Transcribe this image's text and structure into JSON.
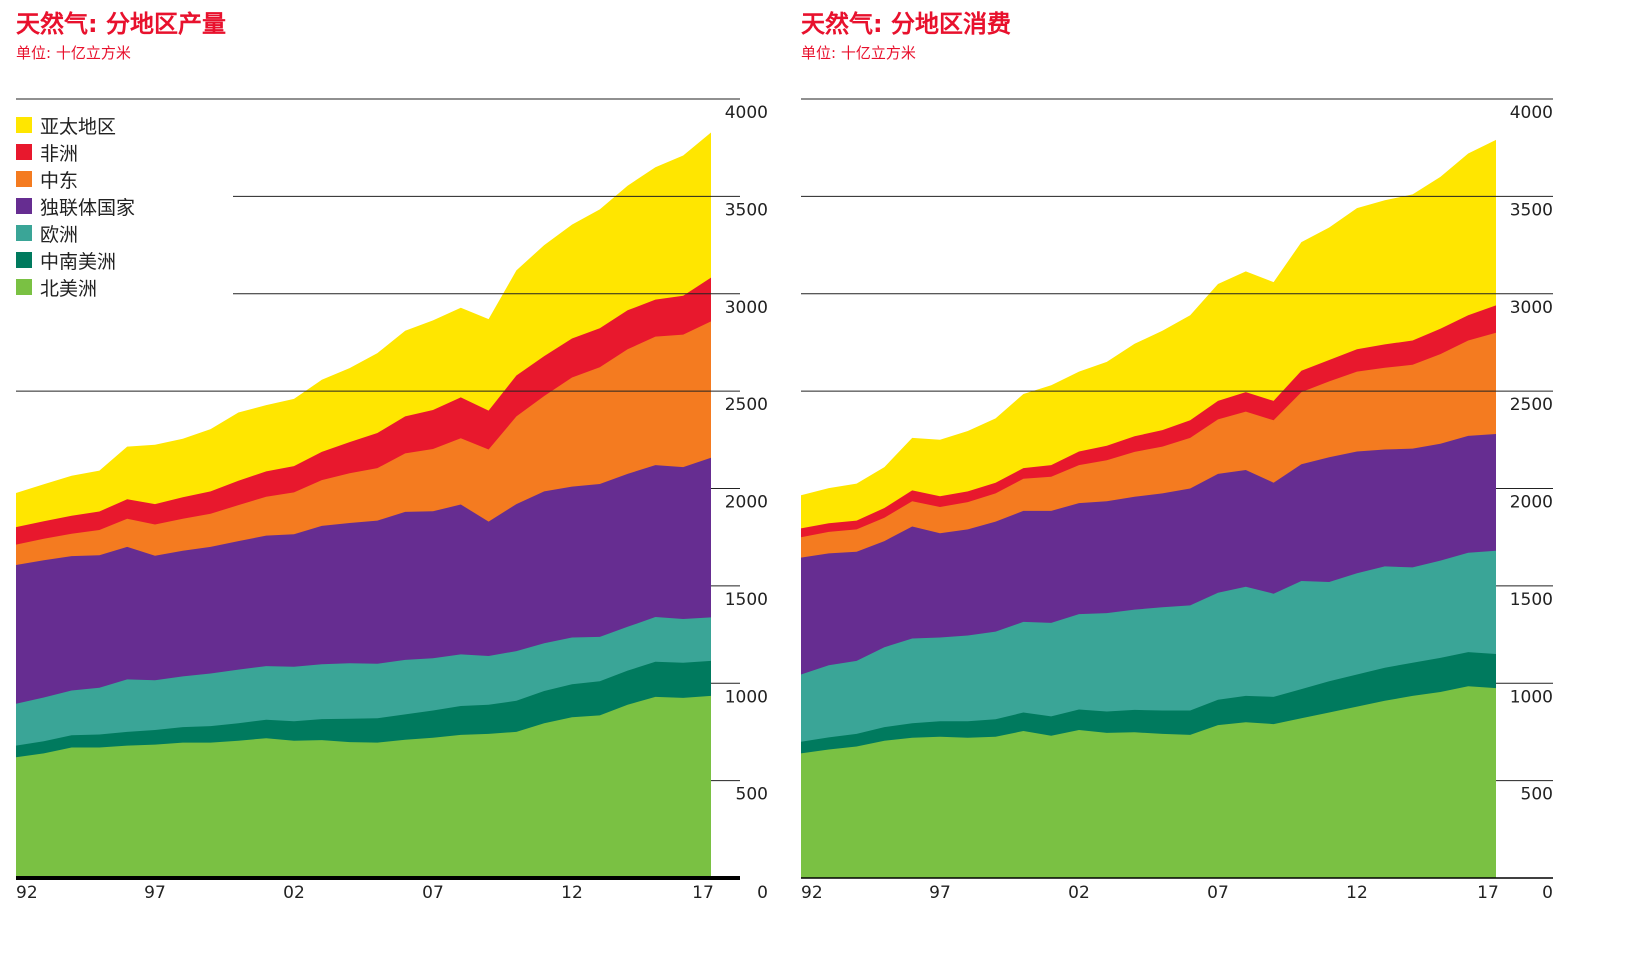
{
  "colors": {
    "title": "#e8112d",
    "gridline": "#222222",
    "baseline": "#000000"
  },
  "years": [
    "92",
    "93",
    "94",
    "95",
    "96",
    "97",
    "98",
    "99",
    "00",
    "01",
    "02",
    "03",
    "04",
    "05",
    "06",
    "07",
    "08",
    "09",
    "10",
    "11",
    "12",
    "13",
    "14",
    "15",
    "16",
    "17"
  ],
  "x_tick_labels": [
    "92",
    "97",
    "02",
    "07",
    "12",
    "17"
  ],
  "y_tick_labels": [
    "0",
    "500",
    "1000",
    "1500",
    "2000",
    "2500",
    "3000",
    "3500",
    "4000"
  ],
  "legend": [
    {
      "label": "亚太地区",
      "color": "#ffe600"
    },
    {
      "label": "非洲",
      "color": "#e8182d"
    },
    {
      "label": "中东",
      "color": "#f47b20"
    },
    {
      "label": "独联体国家",
      "color": "#662d91"
    },
    {
      "label": "欧洲",
      "color": "#3aa597"
    },
    {
      "label": "中南美洲",
      "color": "#007a5e"
    },
    {
      "label": "北美洲",
      "color": "#7ac143"
    }
  ],
  "chart_data": [
    {
      "type": "area",
      "stacked": true,
      "title": "天然气: 分地区产量",
      "subtitle": "单位: 十亿立方米",
      "ylim": [
        0,
        4000
      ],
      "x": [
        "92",
        "93",
        "94",
        "95",
        "96",
        "97",
        "98",
        "99",
        "00",
        "01",
        "02",
        "03",
        "04",
        "05",
        "06",
        "07",
        "08",
        "09",
        "10",
        "11",
        "12",
        "13",
        "14",
        "15",
        "16",
        "17"
      ],
      "series": [
        {
          "name": "北美洲",
          "color": "#7ac143",
          "values": [
            620,
            640,
            670,
            670,
            680,
            685,
            695,
            695,
            705,
            718,
            705,
            708,
            698,
            695,
            710,
            720,
            735,
            740,
            750,
            795,
            825,
            835,
            890,
            930,
            925,
            935
          ]
        },
        {
          "name": "中南美洲",
          "color": "#007a5e",
          "values": [
            60,
            62,
            63,
            67,
            70,
            75,
            80,
            85,
            90,
            95,
            100,
            108,
            120,
            125,
            130,
            140,
            148,
            150,
            160,
            165,
            170,
            175,
            175,
            180,
            180,
            180
          ]
        },
        {
          "name": "欧洲",
          "color": "#3aa597",
          "values": [
            215,
            225,
            230,
            240,
            270,
            255,
            260,
            270,
            275,
            275,
            280,
            282,
            285,
            280,
            280,
            268,
            265,
            250,
            255,
            245,
            240,
            228,
            225,
            230,
            225,
            223
          ]
        },
        {
          "name": "独联体国家",
          "color": "#662d91",
          "values": [
            712,
            705,
            690,
            680,
            680,
            640,
            645,
            650,
            660,
            670,
            680,
            710,
            720,
            735,
            760,
            755,
            770,
            690,
            755,
            780,
            775,
            785,
            785,
            780,
            780,
            820
          ]
        },
        {
          "name": "中东",
          "color": "#f47b20",
          "values": [
            105,
            110,
            115,
            130,
            145,
            160,
            165,
            170,
            185,
            200,
            215,
            235,
            255,
            270,
            300,
            320,
            340,
            370,
            450,
            490,
            560,
            600,
            640,
            660,
            680,
            700
          ]
        },
        {
          "name": "非洲",
          "color": "#e8182d",
          "values": [
            90,
            90,
            92,
            95,
            100,
            105,
            110,
            115,
            125,
            130,
            135,
            145,
            160,
            180,
            190,
            200,
            210,
            200,
            210,
            205,
            200,
            200,
            200,
            190,
            200,
            225
          ]
        },
        {
          "name": "亚太地区",
          "color": "#ffe600",
          "values": [
            175,
            190,
            205,
            210,
            270,
            305,
            300,
            320,
            350,
            340,
            345,
            370,
            380,
            410,
            440,
            460,
            460,
            470,
            540,
            570,
            585,
            610,
            640,
            680,
            720,
            745
          ]
        }
      ]
    },
    {
      "type": "area",
      "stacked": true,
      "title": "天然气: 分地区消费",
      "subtitle": "单位: 十亿立方米",
      "ylim": [
        0,
        4000
      ],
      "x": [
        "92",
        "93",
        "94",
        "95",
        "96",
        "97",
        "98",
        "99",
        "00",
        "01",
        "02",
        "03",
        "04",
        "05",
        "06",
        "07",
        "08",
        "09",
        "10",
        "11",
        "12",
        "13",
        "14",
        "15",
        "16",
        "17"
      ],
      "series": [
        {
          "name": "北美洲",
          "color": "#7ac143",
          "values": [
            640,
            660,
            675,
            705,
            720,
            725,
            720,
            725,
            755,
            730,
            760,
            745,
            748,
            740,
            735,
            785,
            800,
            790,
            820,
            850,
            880,
            910,
            935,
            955,
            985,
            975
          ]
        },
        {
          "name": "中南美洲",
          "color": "#007a5e",
          "values": [
            60,
            62,
            65,
            70,
            75,
            80,
            85,
            90,
            95,
            100,
            105,
            110,
            115,
            120,
            125,
            130,
            135,
            140,
            150,
            160,
            165,
            170,
            170,
            175,
            175,
            175
          ]
        },
        {
          "name": "欧洲",
          "color": "#3aa597",
          "values": [
            345,
            370,
            375,
            410,
            435,
            430,
            440,
            450,
            465,
            480,
            490,
            505,
            515,
            530,
            540,
            550,
            560,
            530,
            555,
            510,
            520,
            520,
            490,
            500,
            510,
            530
          ]
        },
        {
          "name": "独联体国家",
          "color": "#662d91",
          "values": [
            600,
            575,
            560,
            545,
            575,
            535,
            545,
            565,
            570,
            575,
            570,
            575,
            580,
            585,
            600,
            610,
            600,
            570,
            600,
            640,
            625,
            600,
            610,
            600,
            600,
            600
          ]
        },
        {
          "name": "中东",
          "color": "#f47b20",
          "values": [
            105,
            110,
            115,
            120,
            130,
            135,
            140,
            145,
            165,
            175,
            195,
            210,
            230,
            240,
            260,
            280,
            300,
            320,
            370,
            390,
            410,
            420,
            430,
            460,
            490,
            520
          ]
        },
        {
          "name": "非洲",
          "color": "#e8182d",
          "values": [
            45,
            45,
            45,
            50,
            55,
            55,
            55,
            55,
            55,
            60,
            70,
            75,
            80,
            85,
            90,
            95,
            100,
            100,
            110,
            110,
            115,
            120,
            125,
            130,
            130,
            140
          ]
        },
        {
          "name": "亚太地区",
          "color": "#ffe600",
          "values": [
            170,
            180,
            190,
            210,
            270,
            290,
            310,
            330,
            380,
            410,
            410,
            430,
            475,
            510,
            540,
            600,
            620,
            610,
            660,
            680,
            725,
            740,
            750,
            780,
            830,
            850
          ]
        }
      ]
    }
  ]
}
